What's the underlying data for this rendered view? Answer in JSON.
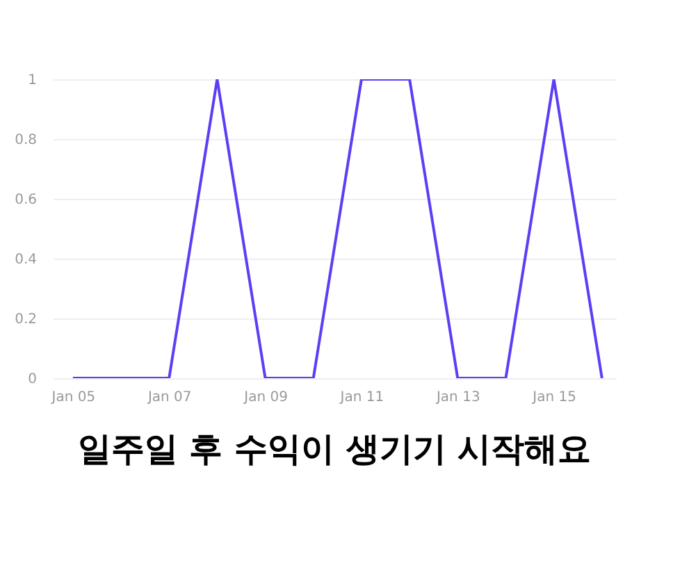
{
  "chart_data": {
    "type": "line",
    "title": "일주일 후 수익이 생기기 시작해요",
    "x": [
      "--01-05",
      "--01-06",
      "--01-07",
      "--01-08",
      "--01-09",
      "--01-10",
      "--01-11",
      "--01-12",
      "--01-13",
      "--01-14",
      "--01-15",
      "--01-16"
    ],
    "series": [
      {
        "color": "#5b3ff5",
        "values": [
          0,
          0,
          0,
          1,
          0,
          0,
          1,
          1,
          0,
          0,
          1,
          0
        ]
      }
    ],
    "xlim": [
      "--01-04T14:00",
      "--01-16T07:00"
    ],
    "xticks": [
      {
        "value": "--01-05",
        "label": "Jan 05"
      },
      {
        "value": "--01-07",
        "label": "Jan 07"
      },
      {
        "value": "--01-09",
        "label": "Jan 09"
      },
      {
        "value": "--01-11",
        "label": "Jan 11"
      },
      {
        "value": "--01-13",
        "label": "Jan 13"
      },
      {
        "value": "--01-15",
        "label": "Jan 15"
      }
    ],
    "ylim": [
      0,
      1
    ],
    "yticks": [
      0,
      0.2,
      0.4,
      0.6,
      0.8,
      1
    ],
    "grid": "y",
    "marker": "none",
    "line_style": "solid",
    "legend": false
  }
}
